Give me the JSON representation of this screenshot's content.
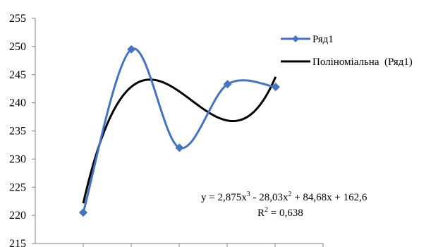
{
  "chart_data": {
    "type": "line",
    "x": [
      1,
      2,
      3,
      4,
      5
    ],
    "series": [
      {
        "name": "Ряд1",
        "values": [
          220.5,
          249.5,
          232.0,
          243.3,
          242.8
        ],
        "color": "#4472C4",
        "marker": "diamond"
      },
      {
        "name": "Поліноміальна  (Ряд1)",
        "kind": "trendline-polynomial-3",
        "coefficients": [
          2.875,
          -28.03,
          84.68,
          162.6
        ],
        "color": "#000000"
      }
    ],
    "ylim": [
      215,
      255
    ],
    "yticks": [
      "215",
      "220",
      "225",
      "230",
      "235",
      "240",
      "245",
      "250",
      "255"
    ],
    "xlabel": "",
    "ylabel": "",
    "title": "",
    "legend_position": "right",
    "grid": false,
    "annotations": {
      "equation_parts": [
        "y = 2,875x",
        "3",
        " - 28,03x",
        "2",
        " + 84,68x + 162,6"
      ],
      "r2_parts": [
        "R",
        "2",
        " = 0,638"
      ]
    }
  }
}
